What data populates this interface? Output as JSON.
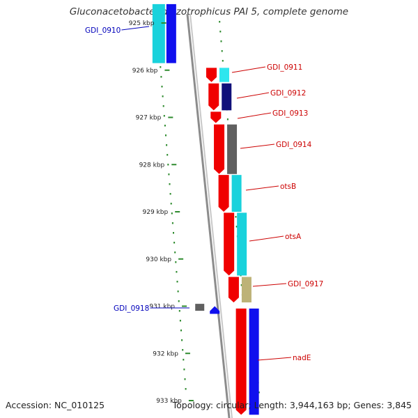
{
  "title": "Gluconacetobacter diazotrophicus PAI 5, complete genome",
  "footer": {
    "accession": "Accession: NC_010125",
    "summary": "Topology: circular; Length: 3,944,163 bp; Genes: 3,845"
  },
  "colors": {
    "backbone": "#8c8c8c",
    "dots": "#2e8b2e",
    "label_forward": "#cc0000",
    "label_reverse": "#0000bb",
    "red": "#f00000",
    "blue": "#1010ee",
    "cyan": "#19d2dc",
    "light_cyan": "#2ee6ee",
    "navy": "#10107a",
    "grey": "#606060",
    "khaki": "#bdb277"
  },
  "ticks": [
    "925 kbp",
    "926 kbp",
    "927 kbp",
    "928 kbp",
    "929 kbp",
    "930 kbp",
    "931 kbp",
    "932 kbp",
    "933 kbp"
  ],
  "genes": [
    {
      "name": "GDI_0910",
      "strand": "reverse",
      "start_kbp": 924.6,
      "end_kbp": 925.85,
      "color": "cyan",
      "inner_color": "blue"
    },
    {
      "name": "GDI_0911",
      "strand": "forward",
      "start_kbp": 925.95,
      "end_kbp": 926.25,
      "color": "red",
      "inner_color": "light_cyan"
    },
    {
      "name": "GDI_0912",
      "strand": "forward",
      "start_kbp": 926.28,
      "end_kbp": 926.85,
      "color": "red",
      "inner_color": "navy"
    },
    {
      "name": "GDI_0913",
      "strand": "forward",
      "start_kbp": 926.88,
      "end_kbp": 927.12,
      "color": "red",
      "inner_color": ""
    },
    {
      "name": "GDI_0914",
      "strand": "forward",
      "start_kbp": 927.15,
      "end_kbp": 928.2,
      "color": "red",
      "inner_color": "grey"
    },
    {
      "name": "otsB",
      "strand": "forward",
      "start_kbp": 928.22,
      "end_kbp": 929.0,
      "color": "red",
      "inner_color": "cyan"
    },
    {
      "name": "otsA",
      "strand": "forward",
      "start_kbp": 929.02,
      "end_kbp": 930.35,
      "color": "red",
      "inner_color": "cyan"
    },
    {
      "name": "GDI_0917",
      "strand": "forward",
      "start_kbp": 930.38,
      "end_kbp": 930.92,
      "color": "red",
      "inner_color": "khaki"
    },
    {
      "name": "GDI_0918",
      "strand": "reverse",
      "start_kbp": 930.85,
      "end_kbp": 931.1,
      "color": "grey",
      "inner_color": "blue"
    },
    {
      "name": "nadE",
      "strand": "forward",
      "start_kbp": 931.05,
      "end_kbp": 933.3,
      "color": "red",
      "inner_color": "blue"
    }
  ]
}
